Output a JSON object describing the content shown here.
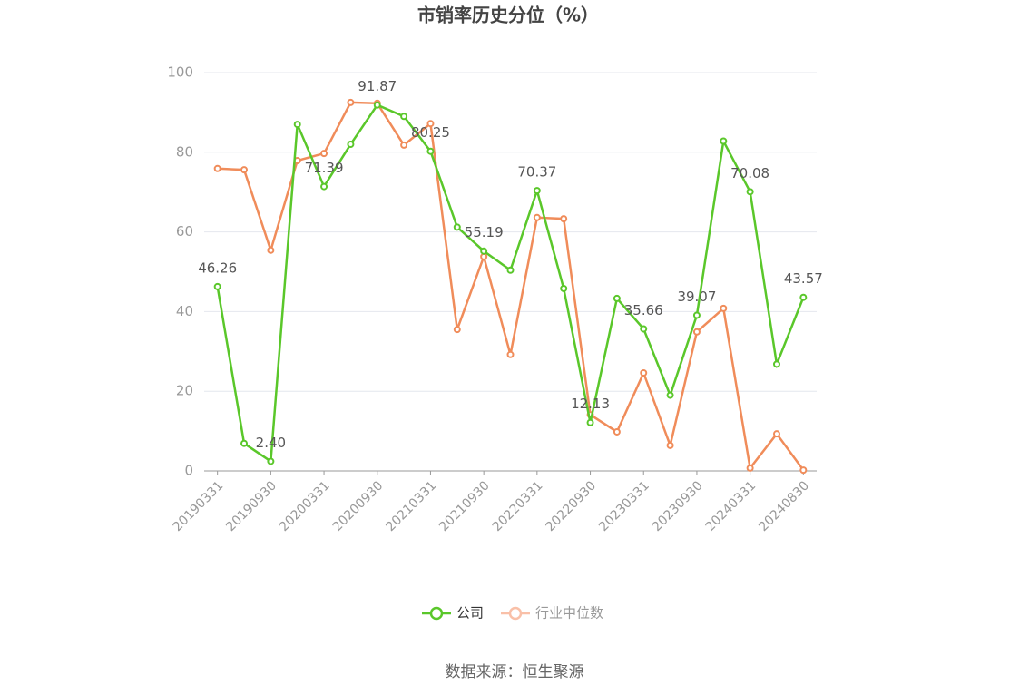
{
  "chart_data": {
    "type": "line",
    "title": "市销率历史分位（%）",
    "categories": [
      "20190331",
      null,
      "20190930",
      null,
      "20200331",
      null,
      "20200930",
      null,
      "20210331",
      null,
      "20210930",
      null,
      "20220331",
      null,
      "20220930",
      null,
      "20230331",
      null,
      "20230930",
      null,
      "20240331",
      null,
      "20240830"
    ],
    "series": [
      {
        "name": "公司",
        "color": "#5ac72a",
        "values": [
          46.26,
          6.9,
          2.4,
          87,
          71.39,
          82,
          91.87,
          89,
          80.25,
          61.2,
          55.19,
          50.4,
          70.37,
          45.8,
          12.13,
          43.3,
          35.66,
          19,
          39.07,
          82.8,
          70.08,
          26.8,
          43.57
        ],
        "value_labels": [
          "46.26",
          null,
          "2.40",
          null,
          "71.39",
          null,
          "91.87",
          null,
          "80.25",
          null,
          "55.19",
          null,
          "70.37",
          null,
          "12.13",
          null,
          "35.66",
          null,
          "39.07",
          null,
          "70.08",
          null,
          "43.57"
        ]
      },
      {
        "name": "行业中位数",
        "color": "#f08c5a",
        "values": [
          75.9,
          75.6,
          55.4,
          77.9,
          79.7,
          92.5,
          92.3,
          81.8,
          87.2,
          35.5,
          53.8,
          29.2,
          63.6,
          63.3,
          14.1,
          9.8,
          24.6,
          6.4,
          34.9,
          40.8,
          0.7,
          9.3,
          0.2
        ]
      }
    ],
    "ylim": [
      0,
      100
    ],
    "yticks": [
      0,
      20,
      40,
      60,
      80,
      100
    ],
    "grid": true,
    "legend": "bottom",
    "source": "数据来源：恒生聚源"
  }
}
